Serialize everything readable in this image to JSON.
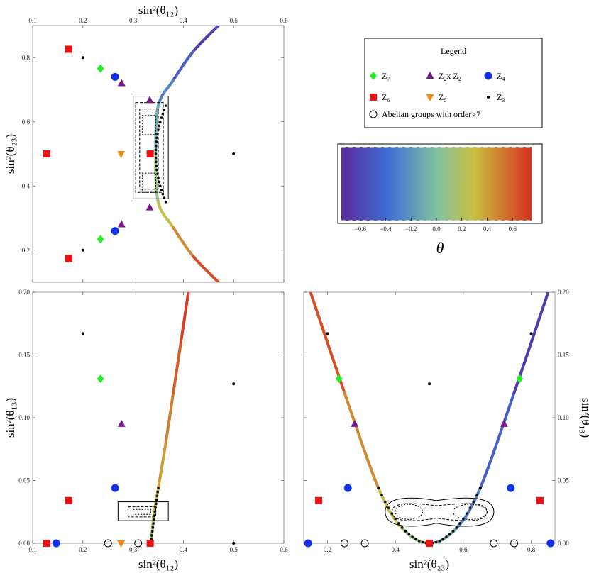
{
  "chart_data": [
    {
      "type": "scatter",
      "panel": "top-left",
      "xlabel": "sin²(θ₁₂)",
      "ylabel": "sin²(θ₂₃)",
      "xlim": [
        0.1,
        0.6
      ],
      "ylim": [
        0.1,
        0.9
      ],
      "xticks": [
        "0.1",
        "0.2",
        "0.3",
        "0.4",
        "0.5",
        "0.6"
      ],
      "yticks": [
        "0.2",
        "0.4",
        "0.6",
        "0.8"
      ],
      "series": [
        {
          "name": "Z7",
          "values": [
            [
              0.235,
              0.766
            ],
            [
              0.235,
              0.234
            ]
          ]
        },
        {
          "name": "Z6",
          "values": [
            [
              0.172,
              0.826
            ],
            [
              0.128,
              0.5
            ],
            [
              0.172,
              0.174
            ],
            [
              0.334,
              0.5
            ]
          ]
        },
        {
          "name": "Z2 x Z2",
          "values": [
            [
              0.277,
              0.72
            ],
            [
              0.333,
              0.667
            ],
            [
              0.277,
              0.28
            ],
            [
              0.333,
              0.333
            ]
          ]
        },
        {
          "name": "Z5",
          "values": [
            [
              0.276,
              0.5
            ]
          ]
        },
        {
          "name": "Z4",
          "values": [
            [
              0.264,
              0.74
            ],
            [
              0.264,
              0.26
            ]
          ]
        },
        {
          "name": "Z3",
          "values": [
            [
              0.2,
              0.8
            ],
            [
              0.2,
              0.2
            ],
            [
              0.5,
              0.5
            ]
          ]
        }
      ],
      "curve": {
        "points": [
          [
            0.47,
            0.9
          ],
          [
            0.42,
            0.82
          ],
          [
            0.38,
            0.73
          ],
          [
            0.35,
            0.65
          ],
          [
            0.345,
            0.5
          ],
          [
            0.35,
            0.35
          ],
          [
            0.38,
            0.27
          ],
          [
            0.42,
            0.18
          ],
          [
            0.47,
            0.1
          ]
        ]
      }
    },
    {
      "type": "scatter",
      "panel": "bottom-left",
      "xlabel": "sin²(θ₁₂)",
      "ylabel": "sin²(θ₁₃)",
      "xlim": [
        0.1,
        0.6
      ],
      "ylim": [
        0.0,
        0.2
      ],
      "xticks": [
        "0.1",
        "0.2",
        "0.3",
        "0.4",
        "0.5",
        "0.6"
      ],
      "yticks": [
        "0.00",
        "0.05",
        "0.10",
        "0.15",
        "0.20"
      ],
      "series": [
        {
          "name": "Z7",
          "values": [
            [
              0.235,
              0.131
            ]
          ]
        },
        {
          "name": "Z6",
          "values": [
            [
              0.172,
              0.034
            ],
            [
              0.128,
              0.0
            ],
            [
              0.334,
              0.0
            ]
          ]
        },
        {
          "name": "Z2 x Z2",
          "values": [
            [
              0.277,
              0.095
            ]
          ]
        },
        {
          "name": "Z5",
          "values": [
            [
              0.276,
              0.0
            ]
          ]
        },
        {
          "name": "Z4",
          "values": [
            [
              0.264,
              0.044
            ],
            [
              0.147,
              0.0
            ]
          ]
        },
        {
          "name": "Z3",
          "values": [
            [
              0.2,
              0.167
            ],
            [
              0.5,
              0.127
            ],
            [
              0.5,
              0.0
            ]
          ]
        },
        {
          "name": "Abelian groups with order>7",
          "values": [
            [
              0.25,
              0.0
            ],
            [
              0.31,
              0.0
            ]
          ]
        }
      ],
      "curve": {
        "points": [
          [
            0.335,
            0.0
          ],
          [
            0.338,
            0.01
          ],
          [
            0.342,
            0.025
          ],
          [
            0.35,
            0.044
          ],
          [
            0.365,
            0.08
          ],
          [
            0.38,
            0.12
          ],
          [
            0.395,
            0.16
          ],
          [
            0.41,
            0.2
          ]
        ]
      }
    },
    {
      "type": "scatter",
      "panel": "bottom-right",
      "xlabel": "sin²(θ₂₃)",
      "ylabel": "sin²(θ₁₃)",
      "xlim": [
        0.13,
        0.87
      ],
      "ylim": [
        0.0,
        0.2
      ],
      "xticks": [
        "0.2",
        "0.4",
        "0.6",
        "0.8"
      ],
      "yticks": [
        "0.00",
        "0.05",
        "0.10",
        "0.15",
        "0.20"
      ],
      "series": [
        {
          "name": "Z7",
          "values": [
            [
              0.234,
              0.131
            ],
            [
              0.766,
              0.131
            ]
          ]
        },
        {
          "name": "Z6",
          "values": [
            [
              0.174,
              0.034
            ],
            [
              0.826,
              0.034
            ],
            [
              0.5,
              0.0
            ]
          ]
        },
        {
          "name": "Z2 x Z2",
          "values": [
            [
              0.28,
              0.095
            ],
            [
              0.72,
              0.095
            ]
          ]
        },
        {
          "name": "Z4",
          "values": [
            [
              0.26,
              0.044
            ],
            [
              0.74,
              0.044
            ],
            [
              0.143,
              0.0
            ],
            [
              0.857,
              0.0
            ]
          ]
        },
        {
          "name": "Z3",
          "values": [
            [
              0.2,
              0.167
            ],
            [
              0.8,
              0.167
            ],
            [
              0.5,
              0.127
            ],
            [
              0.35,
              0.044
            ],
            [
              0.65,
              0.044
            ]
          ]
        },
        {
          "name": "Abelian groups with order>7",
          "values": [
            [
              0.25,
              0.0
            ],
            [
              0.31,
              0.0
            ],
            [
              0.69,
              0.0
            ],
            [
              0.75,
              0.0
            ]
          ]
        }
      ],
      "curve": {
        "points": [
          [
            0.15,
            0.2
          ],
          [
            0.25,
            0.12
          ],
          [
            0.35,
            0.044
          ],
          [
            0.42,
            0.012
          ],
          [
            0.5,
            0.0
          ],
          [
            0.58,
            0.012
          ],
          [
            0.65,
            0.044
          ],
          [
            0.75,
            0.12
          ],
          [
            0.85,
            0.2
          ]
        ]
      }
    }
  ],
  "legend": {
    "title": "Legend",
    "items": [
      {
        "label": "Z7",
        "text": "Z",
        "sub": "7",
        "marker": "diamond",
        "color": "#22ee22"
      },
      {
        "label": "Z2xZ2",
        "text": "Z",
        "sub": "2",
        "text2": "x Z",
        "sub2": "2",
        "marker": "triangle-up",
        "color": "#7a1a8a"
      },
      {
        "label": "Z4",
        "text": "Z",
        "sub": "4",
        "marker": "circle",
        "color": "#1030ee"
      },
      {
        "label": "Z6",
        "text": "Z",
        "sub": "6",
        "marker": "square",
        "color": "#ee1111"
      },
      {
        "label": "Z5",
        "text": "Z",
        "sub": "5",
        "marker": "triangle-down",
        "color": "#f08a10"
      },
      {
        "label": "Z3",
        "text": "Z",
        "sub": "3",
        "marker": "dot",
        "color": "#000000"
      },
      {
        "label": "Abelian",
        "text": "Abelian groups with order>7",
        "marker": "open-circle",
        "color": "#000000"
      }
    ]
  },
  "colorbar": {
    "label": "θ",
    "range": [
      -0.75,
      0.75
    ],
    "ticks": [
      "−0.6",
      "−0.4",
      "−0.2",
      "0.0",
      "0.2",
      "0.4",
      "0.6"
    ]
  }
}
